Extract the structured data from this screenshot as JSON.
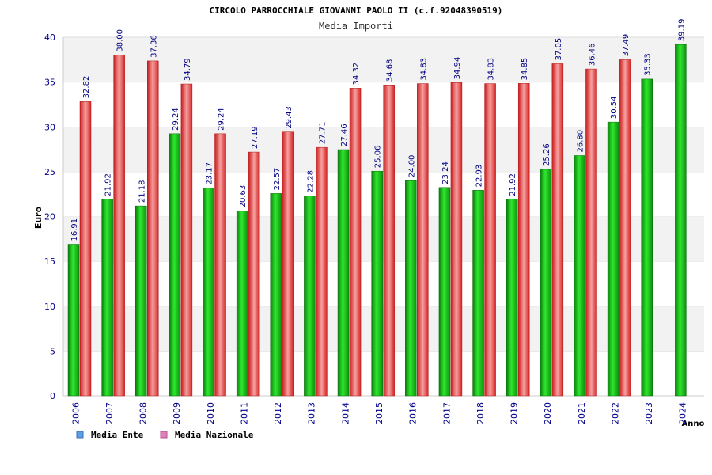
{
  "chart_data": {
    "type": "bar",
    "title": "CIRCOLO PARROCCHIALE GIOVANNI PAOLO II (c.f.92048390519)",
    "subtitle": "Media Importi",
    "xlabel": "Anno",
    "ylabel": "Euro",
    "ylim": [
      0,
      40
    ],
    "yticks": [
      0,
      5,
      10,
      15,
      20,
      25,
      30,
      35,
      40
    ],
    "grid": true,
    "legend_position": "bottom-left",
    "categories": [
      "2006",
      "2007",
      "2008",
      "2009",
      "2010",
      "2011",
      "2012",
      "2013",
      "2014",
      "2015",
      "2016",
      "2017",
      "2018",
      "2019",
      "2020",
      "2021",
      "2022",
      "2023",
      "2024"
    ],
    "series": [
      {
        "name": "Media Ente",
        "legend_color": "#5aa0e6",
        "bar_color": "#1fbf1f",
        "values": [
          16.91,
          21.92,
          21.18,
          29.24,
          23.17,
          20.63,
          22.57,
          22.28,
          27.46,
          25.06,
          24.0,
          23.24,
          22.93,
          21.92,
          25.26,
          26.8,
          30.54,
          35.33,
          39.19
        ],
        "labels": [
          "16.91",
          "21.92",
          "21.18",
          "29.24",
          "23.17",
          "20.63",
          "22.57",
          "22.28",
          "27.46",
          "25.06",
          "24.00",
          "23.24",
          "22.93",
          "21.92",
          "25.26",
          "26.80",
          "30.54",
          "35.33",
          "39.19"
        ]
      },
      {
        "name": "Media Nazionale",
        "legend_color": "#e080b8",
        "bar_color": "#ee3b3b",
        "values": [
          32.82,
          38.0,
          37.36,
          34.79,
          29.24,
          27.19,
          29.43,
          27.71,
          34.32,
          34.68,
          34.83,
          34.94,
          34.83,
          34.85,
          37.05,
          36.46,
          37.49,
          null,
          null
        ],
        "labels": [
          "32.82",
          "38.00",
          "37.36",
          "34.79",
          "29.24",
          "27.19",
          "29.43",
          "27.71",
          "34.32",
          "34.68",
          "34.83",
          "34.94",
          "34.83",
          "34.85",
          "37.05",
          "36.46",
          "37.49",
          null,
          null
        ]
      }
    ],
    "colors": {
      "band_light": "#f2f2f2",
      "band_white": "#ffffff",
      "axis_text": "#00008b",
      "value_text": "#000080",
      "title_text": "#000000",
      "subtitle_text": "#333333"
    }
  }
}
